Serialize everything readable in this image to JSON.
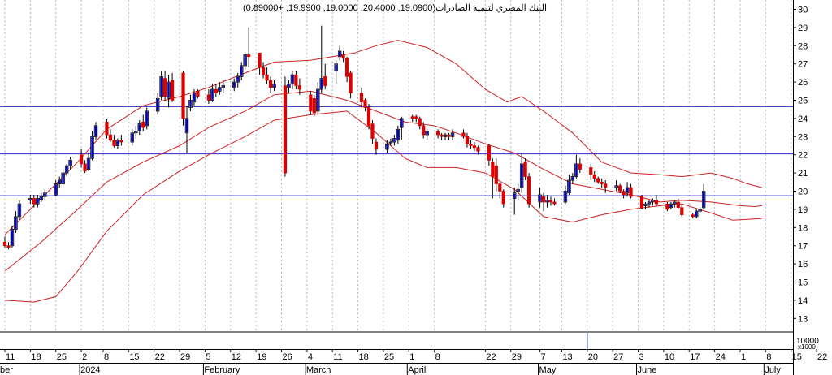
{
  "header": {
    "instrument": "البنك المصري لتنمية الصادرات",
    "ohlc": "(19.0900, 20.4000, 19.0000, 19.9900, +0.89000)"
  },
  "volume_unit": "x1000",
  "volume_tick": "10000",
  "colors": {
    "up": "#0000cc",
    "down": "#dd0000",
    "band": "#cc2222",
    "hline": "#2b2bb0",
    "grid": "#b8b8b8",
    "neutral": "#000000"
  },
  "chart_data": {
    "type": "candlestick",
    "ylim": [
      12,
      30.5
    ],
    "y_ticks": [
      13,
      14,
      15,
      16,
      17,
      18,
      19,
      20,
      21,
      22,
      23,
      24,
      25,
      26,
      27,
      28,
      29,
      30
    ],
    "x_ticks": [
      {
        "label": "11",
        "month": "",
        "d": 0
      },
      {
        "label": "18",
        "month": "",
        "d": 7
      },
      {
        "label": "25",
        "month": "",
        "d": 14
      },
      {
        "label": "2",
        "month": "2024",
        "d": 21
      },
      {
        "label": "8",
        "month": "",
        "d": 27
      },
      {
        "label": "15",
        "month": "",
        "d": 34
      },
      {
        "label": "22",
        "month": "",
        "d": 41
      },
      {
        "label": "29",
        "month": "",
        "d": 48
      },
      {
        "label": "5",
        "month": "February",
        "d": 55
      },
      {
        "label": "12",
        "month": "",
        "d": 62
      },
      {
        "label": "19",
        "month": "",
        "d": 69
      },
      {
        "label": "26",
        "month": "",
        "d": 76
      },
      {
        "label": "4",
        "month": "March",
        "d": 83
      },
      {
        "label": "11",
        "month": "",
        "d": 90
      },
      {
        "label": "18",
        "month": "",
        "d": 97
      },
      {
        "label": "25",
        "month": "",
        "d": 104
      },
      {
        "label": "1",
        "month": "April",
        "d": 111
      },
      {
        "label": "8",
        "month": "",
        "d": 118
      },
      {
        "label": "22",
        "month": "",
        "d": 132
      },
      {
        "label": "29",
        "month": "",
        "d": 139
      },
      {
        "label": "7",
        "month": "May",
        "d": 147
      },
      {
        "label": "13",
        "month": "",
        "d": 153
      },
      {
        "label": "20",
        "month": "",
        "d": 160
      },
      {
        "label": "27",
        "month": "",
        "d": 167
      },
      {
        "label": "3",
        "month": "June",
        "d": 174
      },
      {
        "label": "10",
        "month": "",
        "d": 181
      },
      {
        "label": "17",
        "month": "",
        "d": 188
      },
      {
        "label": "24",
        "month": "",
        "d": 195
      },
      {
        "label": "1",
        "month": "",
        "d": 202
      },
      {
        "label": "8",
        "month": "July",
        "d": 209
      },
      {
        "label": "15",
        "month": "",
        "d": 216
      },
      {
        "label": "22",
        "month": "",
        "d": 223
      }
    ],
    "month_start_label": "ber",
    "horizontal_lines": [
      24.65,
      22.05,
      19.75
    ],
    "bands": {
      "upper": [
        [
          0,
          17.6
        ],
        [
          10,
          19.6
        ],
        [
          20,
          21.6
        ],
        [
          28,
          23.4
        ],
        [
          38,
          24.7
        ],
        [
          48,
          25.2
        ],
        [
          56,
          25.7
        ],
        [
          66,
          26.5
        ],
        [
          74,
          27.1
        ],
        [
          84,
          27.2
        ],
        [
          96,
          27.6
        ],
        [
          102,
          28.0
        ],
        [
          108,
          28.3
        ],
        [
          116,
          27.9
        ],
        [
          124,
          27.0
        ],
        [
          132,
          25.6
        ],
        [
          138,
          24.9
        ],
        [
          142,
          25.2
        ],
        [
          148,
          24.4
        ],
        [
          156,
          23.2
        ],
        [
          164,
          21.6
        ],
        [
          172,
          21.0
        ],
        [
          180,
          20.9
        ],
        [
          186,
          20.8
        ],
        [
          194,
          21.0
        ],
        [
          200,
          20.7
        ],
        [
          204,
          20.4
        ],
        [
          208,
          20.2
        ]
      ],
      "middle": [
        [
          0,
          15.6
        ],
        [
          10,
          17.2
        ],
        [
          20,
          19.0
        ],
        [
          28,
          20.5
        ],
        [
          38,
          21.6
        ],
        [
          48,
          22.5
        ],
        [
          56,
          23.5
        ],
        [
          66,
          24.4
        ],
        [
          74,
          25.3
        ],
        [
          84,
          25.5
        ],
        [
          94,
          25.0
        ],
        [
          102,
          24.4
        ],
        [
          110,
          23.8
        ],
        [
          118,
          23.6
        ],
        [
          124,
          23.2
        ],
        [
          132,
          22.6
        ],
        [
          140,
          22.1
        ],
        [
          148,
          21.2
        ],
        [
          156,
          20.4
        ],
        [
          164,
          20.1
        ],
        [
          172,
          19.8
        ],
        [
          180,
          19.4
        ],
        [
          186,
          19.5
        ],
        [
          194,
          19.4
        ],
        [
          202,
          19.2
        ],
        [
          206,
          19.15
        ],
        [
          208,
          19.2
        ]
      ],
      "lower": [
        [
          0,
          14.0
        ],
        [
          8,
          13.9
        ],
        [
          14,
          14.2
        ],
        [
          20,
          15.6
        ],
        [
          28,
          17.8
        ],
        [
          38,
          19.8
        ],
        [
          48,
          21.1
        ],
        [
          56,
          22.0
        ],
        [
          66,
          23.0
        ],
        [
          74,
          23.9
        ],
        [
          84,
          24.2
        ],
        [
          94,
          24.4
        ],
        [
          102,
          23.2
        ],
        [
          110,
          21.8
        ],
        [
          116,
          21.3
        ],
        [
          124,
          21.3
        ],
        [
          132,
          21.0
        ],
        [
          140,
          20.1
        ],
        [
          148,
          18.6
        ],
        [
          156,
          18.3
        ],
        [
          164,
          18.7
        ],
        [
          172,
          19.0
        ],
        [
          180,
          19.2
        ],
        [
          186,
          19.3
        ],
        [
          194,
          18.8
        ],
        [
          200,
          18.4
        ],
        [
          204,
          18.45
        ],
        [
          208,
          18.5
        ]
      ]
    },
    "candles": [
      [
        0,
        17.2,
        17.5,
        16.9,
        17.0
      ],
      [
        1,
        17.0,
        17.2,
        16.8,
        16.9
      ],
      [
        2,
        17.0,
        18.1,
        16.9,
        17.9
      ],
      [
        3,
        17.9,
        18.9,
        17.7,
        18.6
      ],
      [
        4,
        18.6,
        19.5,
        18.4,
        19.3
      ],
      [
        7,
        19.5,
        19.8,
        19.3,
        19.6
      ],
      [
        8,
        19.6,
        19.8,
        19.1,
        19.3
      ],
      [
        9,
        19.3,
        19.8,
        19.1,
        19.6
      ],
      [
        10,
        19.5,
        19.9,
        19.4,
        19.7
      ],
      [
        11,
        19.7,
        20.1,
        19.5,
        19.9
      ],
      [
        14,
        19.8,
        20.6,
        19.7,
        20.4
      ],
      [
        15,
        20.4,
        20.8,
        20.2,
        20.6
      ],
      [
        16,
        20.4,
        21.2,
        20.3,
        21.0
      ],
      [
        17,
        21.0,
        21.5,
        20.8,
        21.4
      ],
      [
        18,
        21.4,
        21.9,
        21.2,
        21.7
      ],
      [
        21,
        22.0,
        22.3,
        21.3,
        21.5
      ],
      [
        22,
        21.5,
        21.7,
        21.0,
        21.1
      ],
      [
        23,
        21.2,
        22.1,
        21.1,
        21.8
      ],
      [
        24,
        21.8,
        23.3,
        21.7,
        23.0
      ],
      [
        25,
        23.0,
        23.8,
        22.8,
        23.6
      ],
      [
        28,
        23.8,
        24.0,
        22.9,
        23.1
      ],
      [
        29,
        23.1,
        23.4,
        22.7,
        22.8
      ],
      [
        30,
        22.8,
        23.1,
        22.4,
        22.5
      ],
      [
        31,
        22.5,
        22.9,
        22.3,
        22.8
      ],
      [
        32,
        22.8,
        23.1,
        22.5,
        22.7
      ],
      [
        35,
        22.7,
        23.4,
        22.5,
        23.2
      ],
      [
        36,
        23.2,
        23.6,
        22.9,
        23.3
      ],
      [
        37,
        23.3,
        23.9,
        23.1,
        23.7
      ],
      [
        38,
        23.8,
        24.2,
        23.3,
        23.5
      ],
      [
        39,
        23.6,
        24.6,
        23.4,
        24.4
      ],
      [
        42,
        24.4,
        25.4,
        24.2,
        25.1
      ],
      [
        43,
        25.2,
        26.6,
        25.0,
        26.3
      ],
      [
        44,
        26.2,
        26.6,
        25.0,
        25.2
      ],
      [
        45,
        25.1,
        26.4,
        24.6,
        26.0
      ],
      [
        46,
        26.1,
        26.5,
        24.9,
        25.0
      ],
      [
        49,
        26.5,
        26.6,
        23.6,
        24.0
      ],
      [
        50,
        23.2,
        24.7,
        22.1,
        24.0
      ],
      [
        51,
        24.6,
        25.3,
        24.4,
        25.0
      ],
      [
        52,
        24.9,
        25.6,
        24.7,
        25.4
      ],
      [
        53,
        25.5,
        25.6,
        25.1,
        25.2
      ],
      [
        56,
        25.3,
        25.6,
        24.8,
        25.0
      ],
      [
        57,
        25.0,
        25.9,
        24.9,
        25.6
      ],
      [
        58,
        25.6,
        25.9,
        25.2,
        25.4
      ],
      [
        59,
        25.5,
        26.0,
        25.3,
        25.7
      ],
      [
        60,
        25.7,
        26.1,
        25.4,
        25.8
      ],
      [
        63,
        25.7,
        26.2,
        25.5,
        26.0
      ],
      [
        64,
        26.0,
        26.5,
        25.7,
        26.3
      ],
      [
        65,
        26.3,
        27.1,
        26.1,
        26.9
      ],
      [
        66,
        26.9,
        27.6,
        26.7,
        27.5
      ],
      [
        67,
        27.5,
        29.0,
        26.8,
        27.4
      ],
      [
        70,
        27.6,
        27.6,
        26.4,
        26.8
      ],
      [
        71,
        26.8,
        27.1,
        26.2,
        26.4
      ],
      [
        72,
        26.4,
        26.8,
        25.9,
        26.1
      ],
      [
        73,
        26.1,
        26.3,
        25.4,
        25.7
      ],
      [
        74,
        25.7,
        26.1,
        25.5,
        25.9
      ],
      [
        77,
        25.8,
        26.3,
        20.8,
        21.0
      ],
      [
        78,
        25.7,
        26.1,
        25.4,
        25.9
      ],
      [
        79,
        25.9,
        26.6,
        25.6,
        26.4
      ],
      [
        80,
        26.4,
        26.6,
        25.6,
        25.8
      ],
      [
        81,
        25.8,
        26.2,
        25.3,
        25.6
      ],
      [
        84,
        25.3,
        25.5,
        24.2,
        24.4
      ],
      [
        85,
        25.1,
        25.3,
        24.1,
        24.3
      ],
      [
        86,
        24.4,
        26.0,
        24.2,
        25.6
      ],
      [
        87,
        25.6,
        29.1,
        25.4,
        26.2
      ],
      [
        88,
        26.3,
        27.0,
        25.6,
        25.8
      ],
      [
        91,
        26.6,
        27.2,
        25.9,
        27.0
      ],
      [
        92,
        27.4,
        28.0,
        27.2,
        27.7
      ],
      [
        93,
        27.5,
        27.7,
        27.1,
        27.3
      ],
      [
        94,
        27.3,
        27.4,
        26.0,
        26.3
      ],
      [
        95,
        26.5,
        26.6,
        25.1,
        25.4
      ],
      [
        98,
        25.4,
        25.7,
        24.6,
        24.9
      ],
      [
        99,
        25.0,
        25.1,
        24.4,
        24.6
      ],
      [
        100,
        24.6,
        24.8,
        23.4,
        23.6
      ],
      [
        101,
        23.7,
        23.9,
        22.6,
        22.9
      ],
      [
        102,
        22.7,
        22.9,
        22.0,
        22.3
      ],
      [
        105,
        22.3,
        22.8,
        22.1,
        22.6
      ],
      [
        106,
        22.7,
        22.9,
        22.5,
        22.7
      ],
      [
        107,
        22.7,
        23.1,
        22.5,
        22.9
      ],
      [
        108,
        22.8,
        23.6,
        22.6,
        23.4
      ],
      [
        109,
        23.5,
        24.1,
        22.8,
        24.0
      ],
      [
        112,
        24.1,
        24.2,
        23.8,
        24.0
      ],
      [
        113,
        24.1,
        24.2,
        23.8,
        24.0
      ],
      [
        114,
        24.0,
        24.1,
        23.4,
        23.6
      ],
      [
        115,
        23.6,
        23.8,
        22.9,
        23.1
      ],
      [
        116,
        23.1,
        23.4,
        22.8,
        23.3
      ],
      [
        119,
        23.3,
        23.4,
        22.9,
        23.1
      ],
      [
        120,
        23.1,
        23.2,
        22.8,
        23.0
      ],
      [
        121,
        23.0,
        23.2,
        22.8,
        23.1
      ],
      [
        122,
        23.1,
        23.2,
        22.8,
        23.0
      ],
      [
        123,
        23.0,
        23.4,
        22.8,
        23.2
      ],
      [
        126,
        23.2,
        23.4,
        22.9,
        23.0
      ],
      [
        127,
        23.0,
        23.2,
        22.4,
        22.6
      ],
      [
        128,
        22.6,
        22.8,
        22.3,
        22.5
      ],
      [
        129,
        22.5,
        22.7,
        22.2,
        22.4
      ],
      [
        130,
        22.4,
        22.5,
        22.0,
        22.2
      ],
      [
        133,
        22.5,
        22.6,
        21.4,
        21.7
      ],
      [
        134,
        21.6,
        21.8,
        19.6,
        20.8
      ],
      [
        135,
        21.4,
        21.8,
        20.0,
        20.4
      ],
      [
        136,
        20.4,
        20.5,
        19.6,
        20.0
      ],
      [
        137,
        20.0,
        20.1,
        19.1,
        19.3
      ],
      [
        140,
        19.6,
        20.2,
        18.7,
        19.9
      ],
      [
        141,
        20.0,
        20.4,
        19.5,
        20.1
      ],
      [
        142,
        20.2,
        22.1,
        19.9,
        21.5
      ],
      [
        143,
        21.6,
        21.8,
        20.6,
        20.8
      ],
      [
        144,
        20.8,
        21.0,
        19.1,
        19.3
      ],
      [
        147,
        19.4,
        20.2,
        19.1,
        19.8
      ],
      [
        148,
        19.7,
        19.9,
        18.9,
        19.4
      ],
      [
        149,
        19.4,
        19.8,
        19.1,
        19.5
      ],
      [
        150,
        19.5,
        19.7,
        19.2,
        19.4
      ],
      [
        151,
        19.4,
        19.6,
        19.2,
        19.3
      ],
      [
        154,
        19.4,
        20.3,
        19.3,
        20.0
      ],
      [
        155,
        19.9,
        20.9,
        19.8,
        20.6
      ],
      [
        156,
        20.6,
        21.0,
        20.4,
        20.8
      ],
      [
        157,
        20.8,
        22.0,
        20.7,
        21.5
      ],
      [
        158,
        21.5,
        21.8,
        21.0,
        21.2
      ],
      [
        161,
        21.3,
        21.5,
        20.6,
        20.9
      ],
      [
        162,
        20.9,
        21.1,
        20.5,
        20.7
      ],
      [
        163,
        20.7,
        20.8,
        20.4,
        20.5
      ],
      [
        164,
        20.5,
        20.7,
        20.2,
        20.4
      ],
      [
        165,
        20.4,
        20.6,
        19.9,
        20.2
      ],
      [
        168,
        20.2,
        20.6,
        20.0,
        20.3
      ],
      [
        169,
        20.3,
        20.4,
        19.9,
        20.0
      ],
      [
        170,
        20.0,
        20.1,
        19.6,
        19.8
      ],
      [
        171,
        19.9,
        20.5,
        19.7,
        20.2
      ],
      [
        172,
        20.2,
        20.4,
        19.6,
        19.7
      ],
      [
        175,
        19.7,
        19.8,
        19.0,
        19.1
      ],
      [
        176,
        19.2,
        19.4,
        19.0,
        19.3
      ],
      [
        177,
        19.3,
        19.5,
        19.1,
        19.4
      ],
      [
        178,
        19.4,
        19.6,
        19.2,
        19.5
      ],
      [
        179,
        19.5,
        19.8,
        19.2,
        19.3
      ],
      [
        182,
        19.3,
        19.4,
        18.9,
        19.0
      ],
      [
        183,
        19.1,
        19.4,
        19.0,
        19.3
      ],
      [
        184,
        19.3,
        19.5,
        19.1,
        19.4
      ],
      [
        185,
        19.4,
        19.6,
        19.0,
        19.1
      ],
      [
        186,
        19.1,
        19.3,
        18.6,
        18.7
      ],
      [
        189,
        18.7,
        18.8,
        18.5,
        18.6
      ],
      [
        190,
        18.6,
        19.0,
        18.5,
        18.9
      ],
      [
        191,
        18.9,
        19.1,
        18.8,
        19.0
      ],
      [
        192,
        19.09,
        20.4,
        19.0,
        19.99
      ]
    ],
    "volume_spikes": [
      160
    ]
  }
}
